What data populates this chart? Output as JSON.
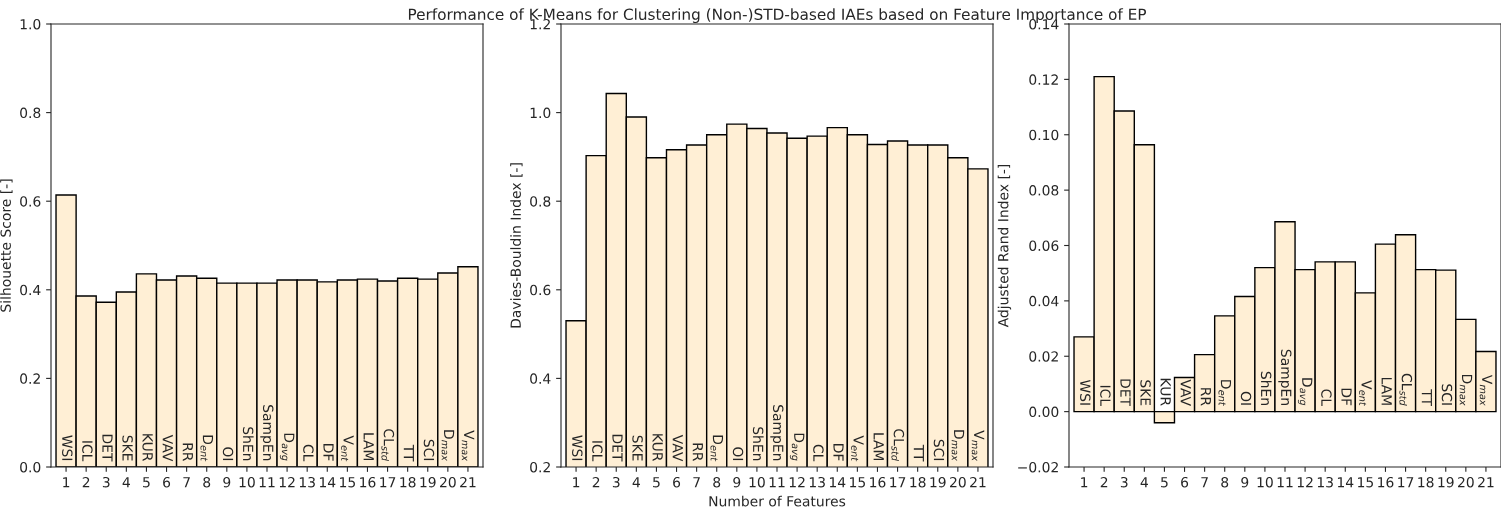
{
  "chart_data": [
    {
      "type": "bar",
      "ylabel": "Silhouette Score [-]",
      "categories": [
        "1",
        "2",
        "3",
        "4",
        "5",
        "6",
        "7",
        "8",
        "9",
        "10",
        "11",
        "12",
        "13",
        "14",
        "15",
        "16",
        "17",
        "18",
        "19",
        "20",
        "21"
      ],
      "series": [
        {
          "color": "#ffefd5",
          "values": [
            0.614,
            0.386,
            0.372,
            0.395,
            0.436,
            0.422,
            0.431,
            0.426,
            0.415,
            0.415,
            0.415,
            0.422,
            0.422,
            0.418,
            0.422,
            0.424,
            0.42,
            0.426,
            0.424,
            0.438,
            0.452
          ]
        }
      ],
      "ylim": [
        0,
        1.0
      ],
      "yticks": [
        {
          "value": 0,
          "label": "0.0"
        },
        0.2,
        0.4,
        0.6,
        0.8,
        {
          "value": 1,
          "label": "1.0"
        }
      ],
      "grid": false,
      "legend": false,
      "annotations": [
        {
          "text": "WSI",
          "x": "1",
          "y": 0
        },
        {
          "text": "ICL",
          "x": "2",
          "y": 0
        },
        {
          "text": "DET",
          "x": "3",
          "y": 0
        },
        {
          "text": "SKE",
          "x": "4",
          "y": 0
        },
        {
          "text": "KUR",
          "x": "5",
          "y": 0
        },
        {
          "text": "VAV",
          "x": "6",
          "y": 0
        },
        {
          "text": "RR",
          "x": "7",
          "y": 0
        },
        {
          "text": "D$_{ent}$",
          "x": "8",
          "y": 0
        },
        {
          "text": "OI",
          "x": "9",
          "y": 0
        },
        {
          "text": "ShEn",
          "x": "10",
          "y": 0
        },
        {
          "text": "SampEn",
          "x": "11",
          "y": 0
        },
        {
          "text": "D$_{avg}$",
          "x": "12",
          "y": 0
        },
        {
          "text": "CL",
          "x": "13",
          "y": 0
        },
        {
          "text": "DF",
          "x": "14",
          "y": 0
        },
        {
          "text": "V$_{ent}$",
          "x": "15",
          "y": 0
        },
        {
          "text": "LAM",
          "x": "16",
          "y": 0
        },
        {
          "text": "CL$_{std}$",
          "x": "17",
          "y": 0
        },
        {
          "text": "TT",
          "x": "18",
          "y": 0
        },
        {
          "text": "SCI",
          "x": "19",
          "y": 0
        },
        {
          "text": "D$_{max}$",
          "x": "20",
          "y": 0
        },
        {
          "text": "V$_{max}$",
          "x": "21",
          "y": 0
        }
      ]
    },
    {
      "type": "bar",
      "title": "Performance of K-Means for Clustering (Non-)STD-based IAEs based on Feature Importance of EP",
      "xlabel": "Number of Features",
      "ylabel": "Davies-Bouldin Index [-]",
      "categories": [
        "1",
        "2",
        "3",
        "4",
        "5",
        "6",
        "7",
        "8",
        "9",
        "10",
        "11",
        "12",
        "13",
        "14",
        "15",
        "16",
        "17",
        "18",
        "19",
        "20",
        "21"
      ],
      "series": [
        {
          "color": "#ffefd5",
          "values": [
            0.53,
            0.903,
            1.043,
            0.99,
            0.898,
            0.916,
            0.927,
            0.95,
            0.974,
            0.964,
            0.954,
            0.942,
            0.947,
            0.966,
            0.95,
            0.928,
            0.936,
            0.927,
            0.927,
            0.898,
            0.873
          ]
        }
      ],
      "ylim": [
        0.2,
        1.2
      ],
      "yticks": [
        0.2,
        0.4,
        0.6,
        0.8,
        {
          "value": 1,
          "label": "1.0"
        },
        1.2
      ],
      "grid": false,
      "legend": false,
      "annotations": [
        "WSI",
        "ICL",
        "DET",
        "SKE",
        "KUR",
        "VAV",
        "RR",
        "D$_{ent}$",
        "OI",
        "ShEn",
        "SampEn",
        "D$_{avg}$",
        "CL",
        "DF",
        "V$_{ent}$",
        "LAM",
        "CL$_{std}$",
        "TT",
        "SCI",
        "D$_{max}$",
        "V$_{max}$"
      ]
    },
    {
      "type": "bar",
      "ylabel": "Adjusted Rand Index [-]",
      "categories": [
        "1",
        "2",
        "3",
        "4",
        "5",
        "6",
        "7",
        "8",
        "9",
        "10",
        "11",
        "12",
        "13",
        "14",
        "15",
        "16",
        "17",
        "18",
        "19",
        "20",
        "21"
      ],
      "series": [
        {
          "color": "#ffefd5",
          "values": [
            0.027,
            0.121,
            0.1086,
            0.0964,
            -0.004,
            0.0123,
            0.0206,
            0.0346,
            0.0416,
            0.052,
            0.0686,
            0.0513,
            0.0541,
            0.0541,
            0.0429,
            0.0605,
            0.0639,
            0.0513,
            0.0511,
            0.0333,
            0.0217
          ]
        }
      ],
      "ylim": [
        -0.02,
        0.14
      ],
      "yticks": [
        {
          "value": -0.02,
          "label": "−0.02"
        },
        {
          "value": 0.0,
          "label": "0.00"
        },
        {
          "value": 0.02,
          "label": "0.02"
        },
        {
          "value": 0.04,
          "label": "0.04"
        },
        {
          "value": 0.06,
          "label": "0.06"
        },
        {
          "value": 0.08,
          "label": "0.08"
        },
        {
          "value": 0.1,
          "label": "0.10"
        },
        {
          "value": 0.12,
          "label": "0.12"
        },
        {
          "value": 0.14,
          "label": "0.14"
        }
      ],
      "grid": false,
      "legend": false,
      "annotations": [
        {
          "text": "WSI",
          "x": "1",
          "y": 0
        },
        {
          "text": "ICL",
          "x": "2",
          "y": 0
        },
        {
          "text": "DET",
          "x": "3",
          "y": 0
        },
        {
          "text": "SKE",
          "x": "4",
          "y": 0
        },
        {
          "text": "KUR",
          "x": "5",
          "y": 0
        },
        {
          "text": "VAV",
          "x": "6",
          "y": 0
        },
        {
          "text": "RR",
          "x": "7",
          "y": 0
        },
        {
          "text": "D$_{ent}$",
          "x": "8",
          "y": 0
        },
        {
          "text": "OI",
          "x": "9",
          "y": 0
        },
        {
          "text": "ShEn",
          "x": "10",
          "y": 0
        },
        {
          "text": "SampEn",
          "x": "11",
          "y": 0
        },
        {
          "text": "D$_{avg}$",
          "x": "12",
          "y": 0
        },
        {
          "text": "CL",
          "x": "13",
          "y": 0
        },
        {
          "text": "DF",
          "x": "14",
          "y": 0
        },
        {
          "text": "V$_{ent}$",
          "x": "15",
          "y": 0
        },
        {
          "text": "LAM",
          "x": "16",
          "y": 0
        },
        {
          "text": "CL$_{std}$",
          "x": "17",
          "y": 0
        },
        {
          "text": "TT",
          "x": "18",
          "y": 0
        },
        {
          "text": "SCI",
          "x": "19",
          "y": 0
        },
        {
          "text": "D$_{max}$",
          "x": "20",
          "y": 0
        },
        {
          "text": "V$_{max}$",
          "x": "21",
          "y": 0
        }
      ]
    }
  ]
}
